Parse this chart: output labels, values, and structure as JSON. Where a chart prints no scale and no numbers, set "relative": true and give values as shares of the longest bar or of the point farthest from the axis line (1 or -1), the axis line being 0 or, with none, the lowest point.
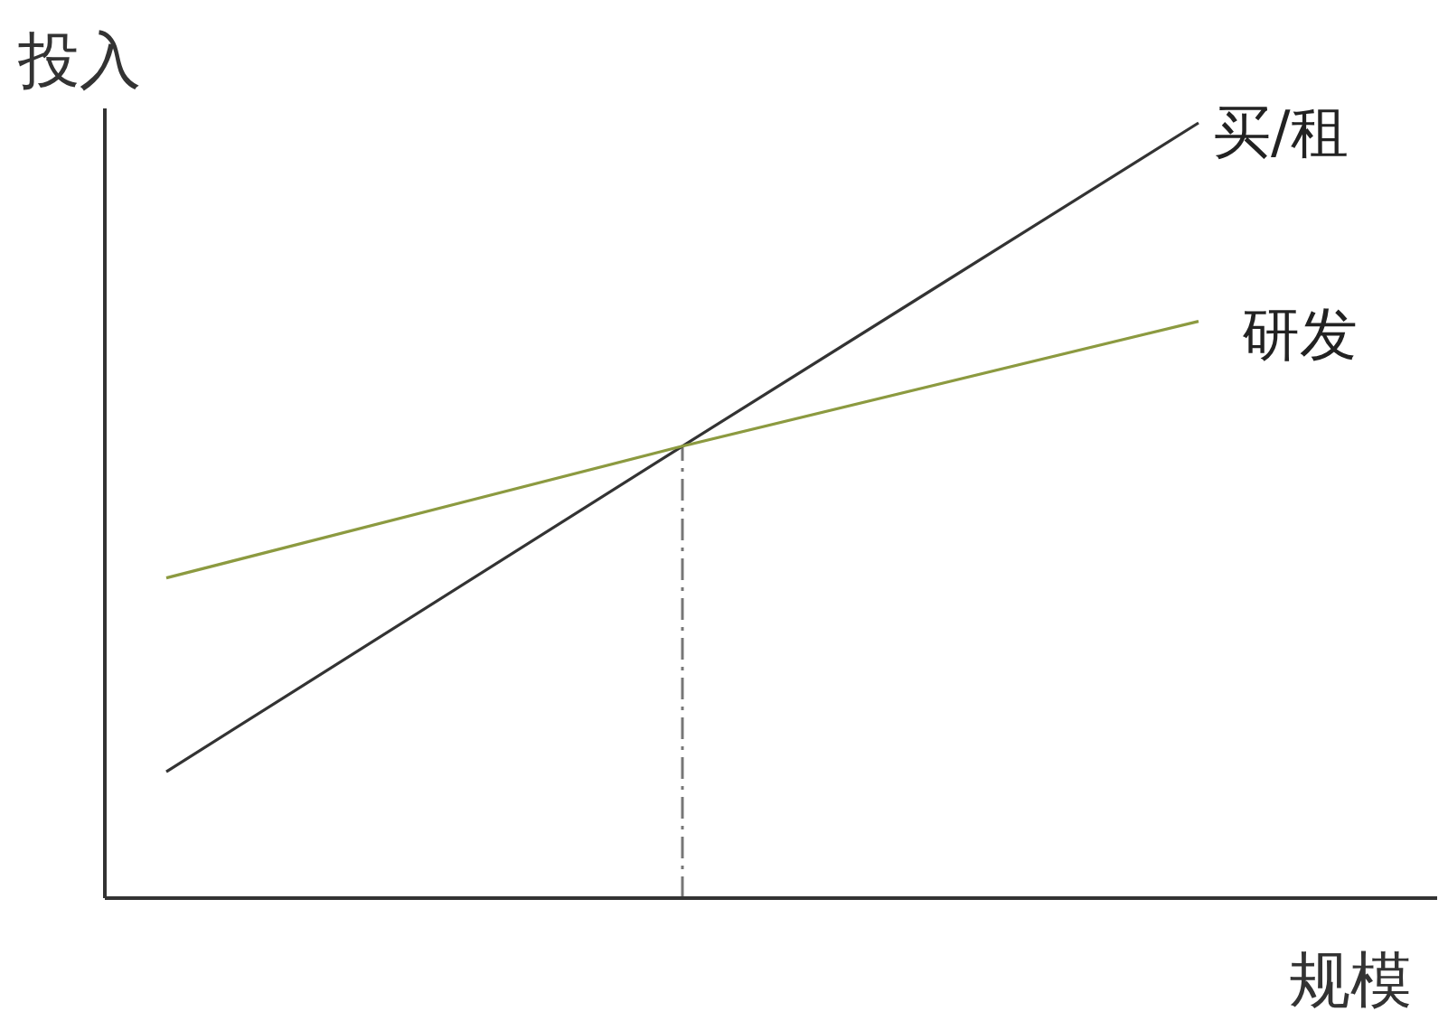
{
  "chart_data": {
    "type": "line",
    "relative": true,
    "ylabel": "投入",
    "xlabel": "规模",
    "categories": [
      null,
      null,
      null
    ],
    "series": [
      {
        "name": "买/租",
        "color": "#333333",
        "values": [
          0.163,
          0.583,
          1
        ]
      },
      {
        "name": "研发",
        "color": "#8c9a40",
        "values": [
          0.413,
          0.583,
          0.744
        ]
      }
    ],
    "grid": false,
    "legend": false,
    "marker": "none",
    "line_style": "solid"
  }
}
